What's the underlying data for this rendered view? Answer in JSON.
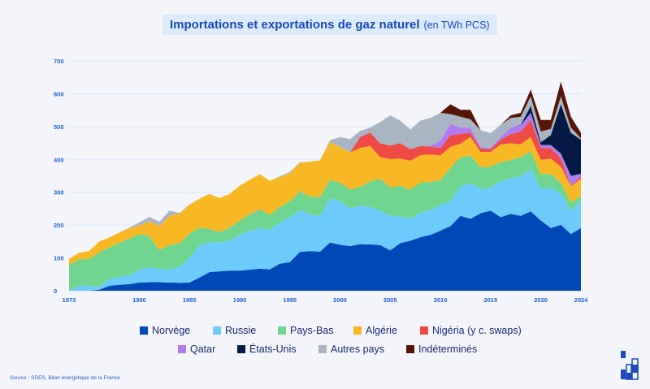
{
  "title": {
    "main": "Importations et exportations de gaz naturel",
    "unit": "(en TWh PCS)"
  },
  "source": "Source : SDES, Bilan énergétique de la France",
  "chart_data": {
    "type": "area",
    "stacked": true,
    "title": "Importations et exportations de gaz naturel (en TWh PCS)",
    "xlim": [
      1973,
      2024
    ],
    "ylim": [
      0,
      700
    ],
    "grid": true,
    "legend_position": "bottom",
    "x_ticks": [
      "1973",
      "1980",
      "1985",
      "1990",
      "1995",
      "2000",
      "2005",
      "2010",
      "2015",
      "2020",
      "2024"
    ],
    "y_ticks": [
      "0",
      "100",
      "200",
      "300",
      "400",
      "500",
      "600",
      "700"
    ],
    "x": [
      1973,
      1974,
      1975,
      1976,
      1977,
      1978,
      1979,
      1980,
      1981,
      1982,
      1983,
      1984,
      1985,
      1986,
      1987,
      1988,
      1989,
      1990,
      1991,
      1992,
      1993,
      1994,
      1995,
      1996,
      1997,
      1998,
      1999,
      2000,
      2001,
      2002,
      2003,
      2004,
      2005,
      2006,
      2007,
      2008,
      2009,
      2010,
      2011,
      2012,
      2013,
      2014,
      2015,
      2016,
      2017,
      2018,
      2019,
      2020,
      2021,
      2022,
      2023,
      2024
    ],
    "series": [
      {
        "name": "Norvège",
        "color": "#0047b8",
        "values": [
          0,
          0,
          0,
          3,
          15,
          18,
          20,
          25,
          26,
          26,
          25,
          24,
          25,
          40,
          57,
          59,
          61,
          61,
          64,
          67,
          65,
          82,
          87,
          118,
          121,
          119,
          147,
          140,
          136,
          142,
          141,
          139,
          123,
          145,
          152,
          163,
          170,
          183,
          197,
          228,
          219,
          236,
          244,
          224,
          234,
          228,
          242,
          214,
          191,
          201,
          173,
          191
        ]
      },
      {
        "name": "Russie",
        "color": "#6dcbfb",
        "values": [
          0,
          15,
          15,
          9,
          20,
          25,
          27,
          39,
          45,
          41,
          40,
          49,
          75,
          100,
          90,
          88,
          92,
          109,
          118,
          124,
          120,
          126,
          137,
          127,
          112,
          109,
          134,
          134,
          115,
          117,
          114,
          105,
          105,
          81,
          66,
          75,
          77,
          77,
          77,
          90,
          108,
          75,
          70,
          109,
          109,
          121,
          129,
          97,
          123,
          95,
          69,
          84
        ]
      },
      {
        "name": "Pays-Bas",
        "color": "#6fd58f",
        "values": [
          78,
          81,
          82,
          105,
          97,
          103,
          112,
          109,
          95,
          57,
          74,
          71,
          74,
          52,
          41,
          32,
          39,
          43,
          51,
          57,
          46,
          47,
          48,
          58,
          54,
          58,
          56,
          55,
          57,
          57,
          78,
          97,
          87,
          94,
          90,
          92,
          84,
          77,
          100,
          89,
          84,
          65,
          64,
          59,
          55,
          58,
          54,
          44,
          42,
          33,
          27,
          14
        ]
      },
      {
        "name": "Algérie",
        "color": "#f8b824",
        "values": [
          19,
          20,
          24,
          33,
          30,
          31,
          31,
          25,
          46,
          73,
          89,
          91,
          88,
          88,
          107,
          103,
          103,
          107,
          105,
          107,
          104,
          91,
          86,
          87,
          106,
          111,
          116,
          109,
          113,
          119,
          108,
          66,
          86,
          83,
          88,
          83,
          84,
          75,
          64,
          41,
          57,
          47,
          44,
          54,
          51,
          39,
          43,
          44,
          46,
          49,
          49,
          52
        ]
      },
      {
        "name": "Nigéria (y c. swaps)",
        "color": "#ef4a45",
        "values": [
          0,
          0,
          0,
          0,
          0,
          0,
          0,
          0,
          0,
          0,
          0,
          0,
          0,
          0,
          0,
          0,
          0,
          0,
          0,
          0,
          0,
          0,
          0,
          0,
          0,
          0,
          0,
          0,
          0,
          33,
          41,
          42,
          41,
          47,
          35,
          28,
          24,
          23,
          36,
          30,
          13,
          10,
          9,
          14,
          28,
          39,
          52,
          36,
          33,
          24,
          2,
          8
        ]
      },
      {
        "name": "Qatar",
        "color": "#b07cf0",
        "values": [
          0,
          0,
          0,
          0,
          0,
          0,
          0,
          0,
          0,
          0,
          0,
          0,
          0,
          0,
          0,
          0,
          0,
          0,
          0,
          0,
          0,
          0,
          0,
          0,
          0,
          0,
          0,
          0,
          0,
          0,
          0,
          0,
          0,
          0,
          0,
          0,
          3,
          21,
          35,
          19,
          16,
          4,
          4,
          8,
          20,
          19,
          22,
          9,
          9,
          16,
          30,
          7
        ]
      },
      {
        "name": "États-Unis",
        "color": "#041a45",
        "values": [
          0,
          0,
          0,
          0,
          0,
          0,
          0,
          0,
          0,
          0,
          0,
          0,
          0,
          0,
          0,
          0,
          0,
          0,
          0,
          0,
          0,
          0,
          0,
          0,
          0,
          0,
          0,
          0,
          0,
          0,
          0,
          0,
          0,
          0,
          0,
          0,
          0,
          0,
          0,
          0,
          0,
          0,
          0,
          0,
          0,
          1,
          21,
          8,
          30,
          150,
          131,
          104
        ]
      },
      {
        "name": "Autres pays",
        "color": "#aab5c3",
        "values": [
          0,
          0,
          0,
          0,
          0,
          0,
          2,
          10,
          13,
          13,
          16,
          2,
          1,
          0,
          0,
          0,
          0,
          0,
          0,
          0,
          0,
          2,
          4,
          1,
          0,
          0,
          5,
          30,
          41,
          19,
          15,
          65,
          92,
          68,
          60,
          77,
          84,
          86,
          29,
          33,
          25,
          52,
          45,
          37,
          29,
          25,
          29,
          33,
          19,
          24,
          16,
          4
        ]
      },
      {
        "name": "Indéterminés",
        "color": "#561507",
        "values": [
          0,
          0,
          0,
          0,
          0,
          0,
          0,
          0,
          0,
          0,
          0,
          0,
          0,
          0,
          0,
          0,
          0,
          0,
          0,
          0,
          0,
          0,
          0,
          0,
          0,
          0,
          0,
          0,
          0,
          0,
          0,
          0,
          0,
          0,
          0,
          0,
          0,
          0,
          30,
          21,
          29,
          0,
          0,
          0,
          8,
          12,
          21,
          35,
          27,
          45,
          33,
          17
        ]
      }
    ]
  },
  "legend": {
    "row1": [
      "Norvège",
      "Russie",
      "Pays-Bas",
      "Algérie",
      "Nigéria (y c. swaps)"
    ],
    "row2": [
      "Qatar",
      "États-Unis",
      "Autres pays",
      "Indéterminés"
    ]
  }
}
